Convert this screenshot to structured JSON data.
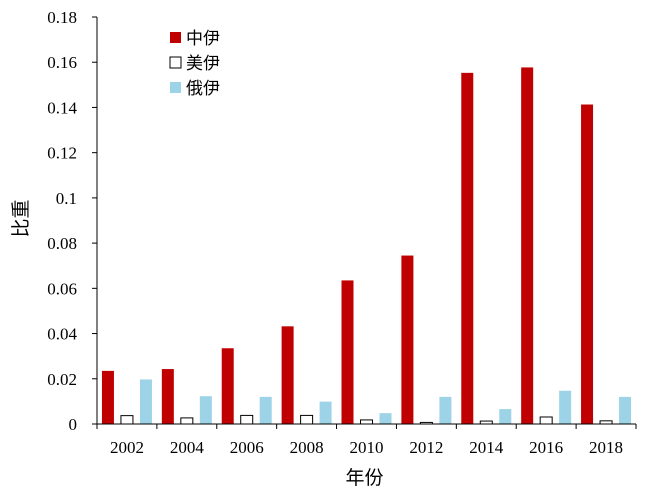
{
  "chart_data": {
    "type": "bar",
    "categories": [
      "2002",
      "2004",
      "2006",
      "2008",
      "2010",
      "2012",
      "2014",
      "2016",
      "2018"
    ],
    "series": [
      {
        "name": "中伊",
        "values": [
          0.0235,
          0.0243,
          0.0335,
          0.0432,
          0.0635,
          0.0745,
          0.1553,
          0.1577,
          0.1413
        ]
      },
      {
        "name": "美伊",
        "values": [
          0.0037,
          0.0027,
          0.0038,
          0.0038,
          0.0018,
          0.0007,
          0.0013,
          0.0031,
          0.0014
        ]
      },
      {
        "name": "俄伊",
        "values": [
          0.0197,
          0.0123,
          0.012,
          0.0099,
          0.0048,
          0.012,
          0.0066,
          0.0147,
          0.012
        ]
      }
    ],
    "xlabel": "年份",
    "ylabel": "比重",
    "ylim": [
      0,
      0.18
    ],
    "yticks": [
      "0",
      "0.02",
      "0.04",
      "0.06",
      "0.08",
      "0.1",
      "0.12",
      "0.14",
      "0.16",
      "0.18"
    ],
    "grid": false,
    "legend_position": "top-left",
    "colors": {
      "中伊": "#c00000",
      "美伊": "#ffffff",
      "俄伊": "#9dd3e6"
    },
    "outline_colors": {
      "中伊": "none",
      "美伊": "#000000",
      "俄伊": "none"
    }
  }
}
